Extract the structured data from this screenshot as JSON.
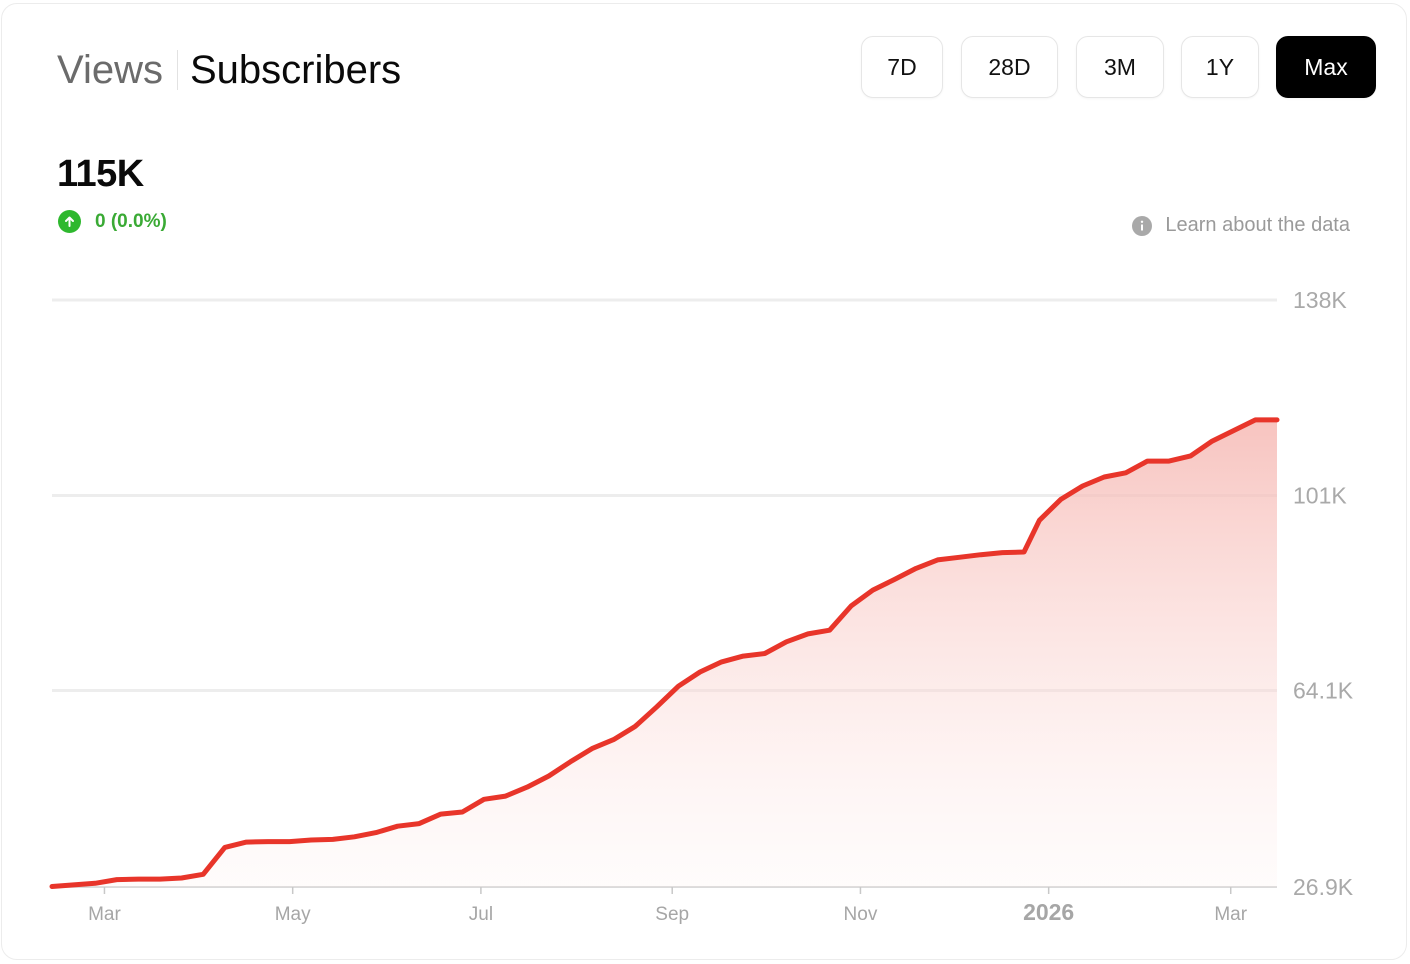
{
  "tabs": {
    "views": "Views",
    "subscribers": "Subscribers"
  },
  "ranges": [
    "7D",
    "28D",
    "3M",
    "1Y",
    "Max"
  ],
  "active_range": "Max",
  "summary": {
    "value": "115K",
    "change": "0 (0.0%)",
    "change_icon": "arrow-up-circle-icon",
    "change_color": "#3aaa35"
  },
  "learn_link": "Learn about the data",
  "colors": {
    "line": "#e8352a",
    "fill": "#f6c4c0",
    "active_button": "#000000"
  },
  "chart_data": {
    "type": "area",
    "title": "",
    "xlabel": "",
    "ylabel": "",
    "ylim": [
      26900,
      138000
    ],
    "y_ticks": [
      {
        "value": 138000,
        "label": "138K"
      },
      {
        "value": 101000,
        "label": "101K"
      },
      {
        "value": 64100,
        "label": "64.1K"
      },
      {
        "value": 26900,
        "label": "26.9K"
      }
    ],
    "x_ticks": [
      {
        "date": "2025-03-01",
        "label": "Mar"
      },
      {
        "date": "2025-05-01",
        "label": "May"
      },
      {
        "date": "2025-07-01",
        "label": "Jul"
      },
      {
        "date": "2025-09-01",
        "label": "Sep"
      },
      {
        "date": "2025-11-01",
        "label": "Nov"
      },
      {
        "date": "2026-01-01",
        "label": "2026",
        "bold": true
      },
      {
        "date": "2026-03-01",
        "label": "Mar"
      }
    ],
    "grid": true,
    "legend": "none",
    "series": [
      {
        "points": [
          [
            "2025-02-12",
            27000
          ],
          [
            "2025-02-19",
            27300
          ],
          [
            "2025-02-26",
            27600
          ],
          [
            "2025-03-05",
            28300
          ],
          [
            "2025-03-12",
            28400
          ],
          [
            "2025-03-19",
            28400
          ],
          [
            "2025-03-26",
            28600
          ],
          [
            "2025-04-02",
            29300
          ],
          [
            "2025-04-09",
            34400
          ],
          [
            "2025-04-16",
            35400
          ],
          [
            "2025-04-23",
            35500
          ],
          [
            "2025-04-30",
            35500
          ],
          [
            "2025-05-07",
            35800
          ],
          [
            "2025-05-14",
            35900
          ],
          [
            "2025-05-21",
            36400
          ],
          [
            "2025-05-28",
            37200
          ],
          [
            "2025-06-04",
            38400
          ],
          [
            "2025-06-11",
            38900
          ],
          [
            "2025-06-18",
            40700
          ],
          [
            "2025-06-25",
            41100
          ],
          [
            "2025-07-02",
            43500
          ],
          [
            "2025-07-09",
            44100
          ],
          [
            "2025-07-16",
            45800
          ],
          [
            "2025-07-23",
            47900
          ],
          [
            "2025-07-30",
            50600
          ],
          [
            "2025-08-06",
            53100
          ],
          [
            "2025-08-13",
            54800
          ],
          [
            "2025-08-20",
            57300
          ],
          [
            "2025-08-27",
            61000
          ],
          [
            "2025-09-03",
            64900
          ],
          [
            "2025-09-10",
            67600
          ],
          [
            "2025-09-17",
            69500
          ],
          [
            "2025-09-24",
            70600
          ],
          [
            "2025-10-01",
            71100
          ],
          [
            "2025-10-08",
            73300
          ],
          [
            "2025-10-15",
            74800
          ],
          [
            "2025-10-22",
            75500
          ],
          [
            "2025-10-29",
            80100
          ],
          [
            "2025-11-05",
            83100
          ],
          [
            "2025-11-12",
            85100
          ],
          [
            "2025-11-19",
            87200
          ],
          [
            "2025-11-26",
            88800
          ],
          [
            "2025-12-03",
            89300
          ],
          [
            "2025-12-10",
            89800
          ],
          [
            "2025-12-17",
            90200
          ],
          [
            "2025-12-24",
            90300
          ],
          [
            "2025-12-29",
            96300
          ],
          [
            "2026-01-05",
            100300
          ],
          [
            "2026-01-12",
            102800
          ],
          [
            "2026-01-19",
            104500
          ],
          [
            "2026-01-26",
            105300
          ],
          [
            "2026-02-02",
            107500
          ],
          [
            "2026-02-09",
            107500
          ],
          [
            "2026-02-16",
            108500
          ],
          [
            "2026-02-23",
            111300
          ],
          [
            "2026-03-02",
            113300
          ],
          [
            "2026-03-09",
            115300
          ],
          [
            "2026-03-16",
            115300
          ]
        ]
      }
    ]
  }
}
